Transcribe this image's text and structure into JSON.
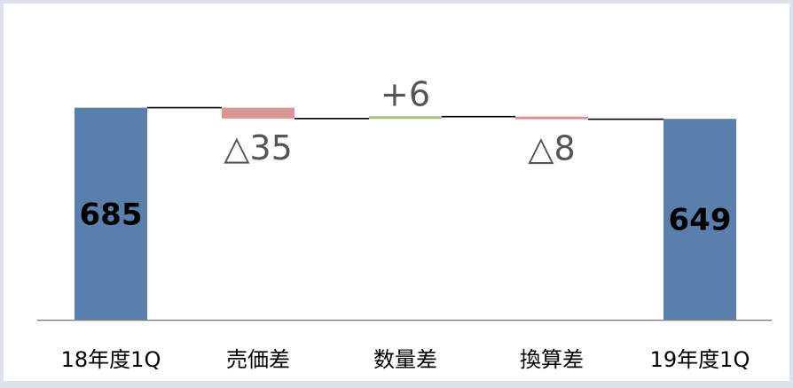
{
  "chart_data": {
    "type": "bar",
    "subtype": "waterfall",
    "categories": [
      "18年度1Q",
      "売価差",
      "数量差",
      "換算差",
      "19年度1Q"
    ],
    "series": [
      {
        "values": [
          685,
          -35,
          6,
          -8,
          649
        ]
      }
    ],
    "data_labels": [
      "685",
      "△35",
      "+6",
      "△8",
      "649"
    ],
    "bar_kinds": [
      "total",
      "delta",
      "delta",
      "delta",
      "total"
    ],
    "colors": {
      "total": "#5b7fac",
      "decrease": "#d89593",
      "increase": "#a9c27f",
      "connector": "#000000",
      "axis": "#888888"
    },
    "ylim": [
      0,
      700
    ],
    "grid": false,
    "legend": "none",
    "title": "",
    "xlabel": "",
    "ylabel": ""
  }
}
